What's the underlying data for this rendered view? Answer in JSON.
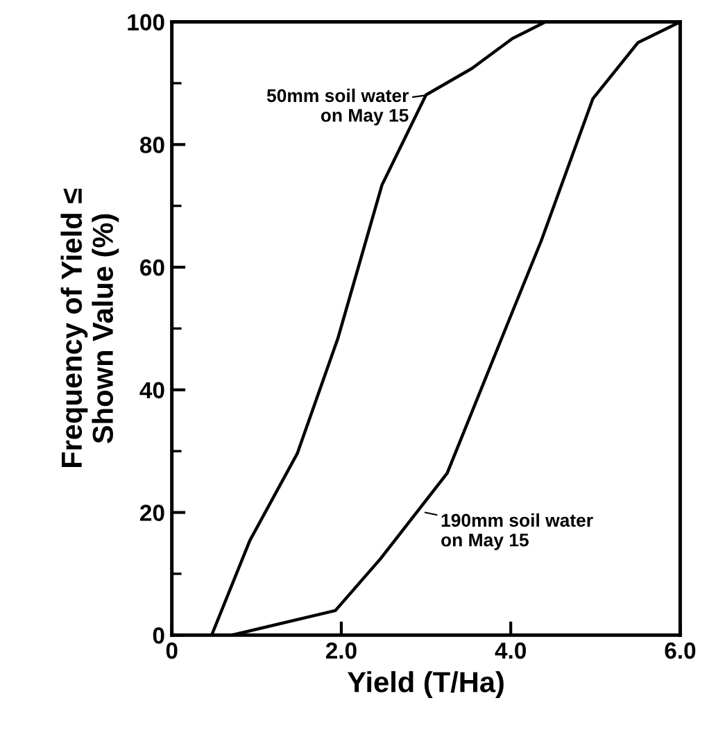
{
  "chart_data": {
    "type": "line",
    "xlabel": "Yield (T/Ha)",
    "ylabel": "Frequency of Yield ≤\nShown Value (%)",
    "series": [
      {
        "color": "#000000",
        "x": [
          0.47,
          0.92,
          1.48,
          1.96,
          2.48,
          3.0,
          3.54,
          4.02,
          4.41
        ],
        "values": [
          0,
          15.4,
          29.6,
          48.4,
          73.4,
          88.1,
          92.4,
          97.3,
          100
        ]
      },
      {
        "color": "#000000",
        "x": [
          0.71,
          1.93,
          2.46,
          3.25,
          3.96,
          4.36,
          4.97,
          5.5,
          6.0
        ],
        "values": [
          0,
          4.0,
          12.4,
          26.4,
          50.7,
          64.3,
          87.5,
          96.6,
          100
        ]
      }
    ],
    "annotations": [
      {
        "text": "50mm soil water\non May 15",
        "x": 2.98,
        "y": 88
      },
      {
        "text": "190mm soil water\non May 15",
        "x": 2.99,
        "y": 20
      }
    ],
    "xlim": [
      0,
      6.0
    ],
    "ylim": [
      0,
      100
    ],
    "xticks": [
      {
        "value": 0,
        "label": "0"
      },
      {
        "value": 2,
        "label": "2.0"
      },
      {
        "value": 4,
        "label": "4.0"
      },
      {
        "value": 6,
        "label": "6.0"
      }
    ],
    "yticks": [
      0,
      20,
      40,
      60,
      80,
      100
    ],
    "grid": false,
    "legend": false,
    "marker": "none",
    "line_style": "solid"
  }
}
